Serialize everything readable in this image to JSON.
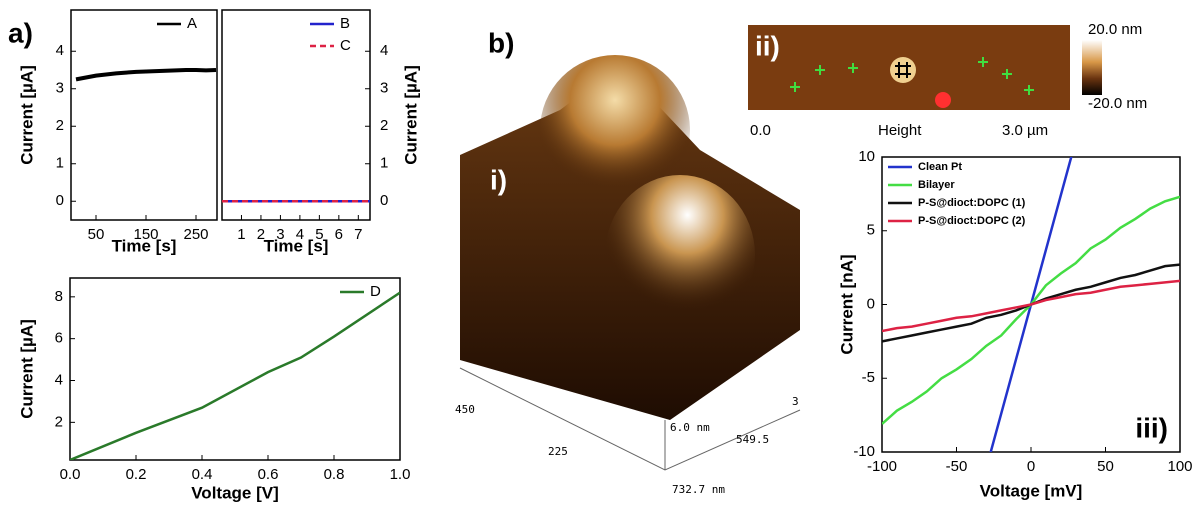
{
  "panel_labels": [
    "a)",
    "b)"
  ],
  "chart_data": [
    {
      "type": "line",
      "xlabel": "Time [s]",
      "ylabel": "Current [µA]",
      "xlim": [
        0,
        292
      ],
      "ylim": [
        -0.5,
        5.1
      ],
      "xticks": [
        50,
        150,
        250
      ],
      "yticks": [
        0,
        1,
        2,
        3,
        4
      ],
      "legend": "upper right",
      "yaxis": "left",
      "x": [
        10,
        30,
        50,
        70,
        90,
        110,
        130,
        150,
        170,
        190,
        210,
        230,
        250,
        270,
        290
      ],
      "series": [
        {
          "name": "A",
          "color": "#000000",
          "linestyle": "solid",
          "values": [
            3.25,
            3.3,
            3.35,
            3.38,
            3.41,
            3.43,
            3.45,
            3.46,
            3.47,
            3.48,
            3.49,
            3.5,
            3.5,
            3.49,
            3.5
          ]
        }
      ]
    },
    {
      "type": "line",
      "xlabel": "Time [s]",
      "ylabel": "Current [µA]",
      "xlim": [
        0,
        7.6
      ],
      "ylim": [
        -0.5,
        5.1
      ],
      "xticks": [
        1,
        2,
        3,
        4,
        5,
        6,
        7
      ],
      "yticks": [
        0,
        1,
        2,
        3,
        4
      ],
      "legend": "upper right",
      "yaxis": "right",
      "x": [
        0,
        1,
        2,
        3,
        4,
        5,
        6,
        7,
        7.6
      ],
      "series": [
        {
          "name": "B",
          "color": "#2222cc",
          "linestyle": "solid",
          "values": [
            0,
            0,
            0,
            0,
            0,
            0,
            0,
            0,
            0
          ]
        },
        {
          "name": "C",
          "color": "#dd2244",
          "linestyle": "dashed",
          "values": [
            0,
            0,
            0,
            0,
            0,
            0,
            0,
            0,
            0
          ]
        }
      ]
    },
    {
      "type": "line",
      "xlabel": "Voltage [V]",
      "ylabel": "Current [µA]",
      "xlim": [
        0,
        1
      ],
      "ylim": [
        0.2,
        8.9
      ],
      "xticks": [
        {
          "value": 0,
          "label": "0.0"
        },
        {
          "value": 0.2,
          "label": "0.2"
        },
        {
          "value": 0.4,
          "label": "0.4"
        },
        {
          "value": 0.6,
          "label": "0.6"
        },
        {
          "value": 0.8,
          "label": "0.8"
        },
        {
          "value": 1,
          "label": "1.0"
        }
      ],
      "yticks": [
        2,
        4,
        6,
        8
      ],
      "legend": "upper right",
      "yaxis": "left",
      "x": [
        0,
        0.2,
        0.4,
        0.6,
        0.7,
        0.8,
        1.0
      ],
      "series": [
        {
          "name": "D",
          "color": "#2a7a2a",
          "linestyle": "solid",
          "values": [
            0.2,
            1.5,
            2.7,
            4.4,
            5.1,
            6.1,
            8.2
          ]
        }
      ]
    },
    {
      "type": "surface",
      "annotation": "i)",
      "tick_labels": [
        "450",
        "225",
        "6.0 nm",
        "3",
        "549.5",
        "732.7 nm"
      ]
    },
    {
      "type": "image",
      "annotation": "ii)",
      "x_labels": [
        "0.0",
        "Height",
        "3.0 µm"
      ],
      "colorbar_labels": [
        "20.0 nm",
        "-20.0 nm"
      ]
    },
    {
      "type": "line",
      "xlabel": "Voltage [mV]",
      "ylabel": "Current [nA]",
      "annotation": "iii)",
      "xlim": [
        -100,
        100
      ],
      "ylim": [
        -10,
        10
      ],
      "xticks": [
        -100,
        -50,
        0,
        50,
        100
      ],
      "yticks": [
        -10,
        -5,
        0,
        5,
        10
      ],
      "legend": "upper left",
      "yaxis": "left",
      "x": [
        -100,
        -90,
        -80,
        -70,
        -60,
        -50,
        -40,
        -30,
        -20,
        -10,
        0,
        10,
        20,
        30,
        40,
        50,
        60,
        70,
        80,
        90,
        100
      ],
      "series": [
        {
          "name": "Clean Pt",
          "color": "#2233cc",
          "linestyle": "solid",
          "values": [
            null,
            null,
            null,
            null,
            null,
            null,
            null,
            -11.1,
            -7.4,
            -3.7,
            0,
            3.7,
            7.4,
            11.1,
            null,
            null,
            null,
            null,
            null,
            null,
            null
          ]
        },
        {
          "name": "Bilayer",
          "color": "#44dd44",
          "linestyle": "solid",
          "values": [
            -8.1,
            -7.2,
            -6.6,
            -5.9,
            -5.0,
            -4.4,
            -3.7,
            -2.8,
            -2.1,
            -1.0,
            0,
            1.3,
            2.1,
            2.8,
            3.8,
            4.4,
            5.2,
            5.8,
            6.5,
            7.0,
            7.3
          ]
        },
        {
          "name": "P-S@dioct:DOPC (1)",
          "color": "#111111",
          "linestyle": "solid",
          "values": [
            -2.5,
            -2.3,
            -2.1,
            -1.9,
            -1.7,
            -1.5,
            -1.3,
            -0.9,
            -0.7,
            -0.4,
            0,
            0.4,
            0.7,
            1.0,
            1.2,
            1.5,
            1.8,
            2.0,
            2.3,
            2.6,
            2.7
          ]
        },
        {
          "name": "P-S@dioct:DOPC (2)",
          "color": "#dd2244",
          "linestyle": "solid",
          "values": [
            -1.8,
            -1.6,
            -1.5,
            -1.3,
            -1.1,
            -0.9,
            -0.8,
            -0.6,
            -0.4,
            -0.2,
            0,
            0.3,
            0.5,
            0.7,
            0.8,
            1.0,
            1.2,
            1.3,
            1.4,
            1.5,
            1.6
          ]
        }
      ]
    }
  ]
}
